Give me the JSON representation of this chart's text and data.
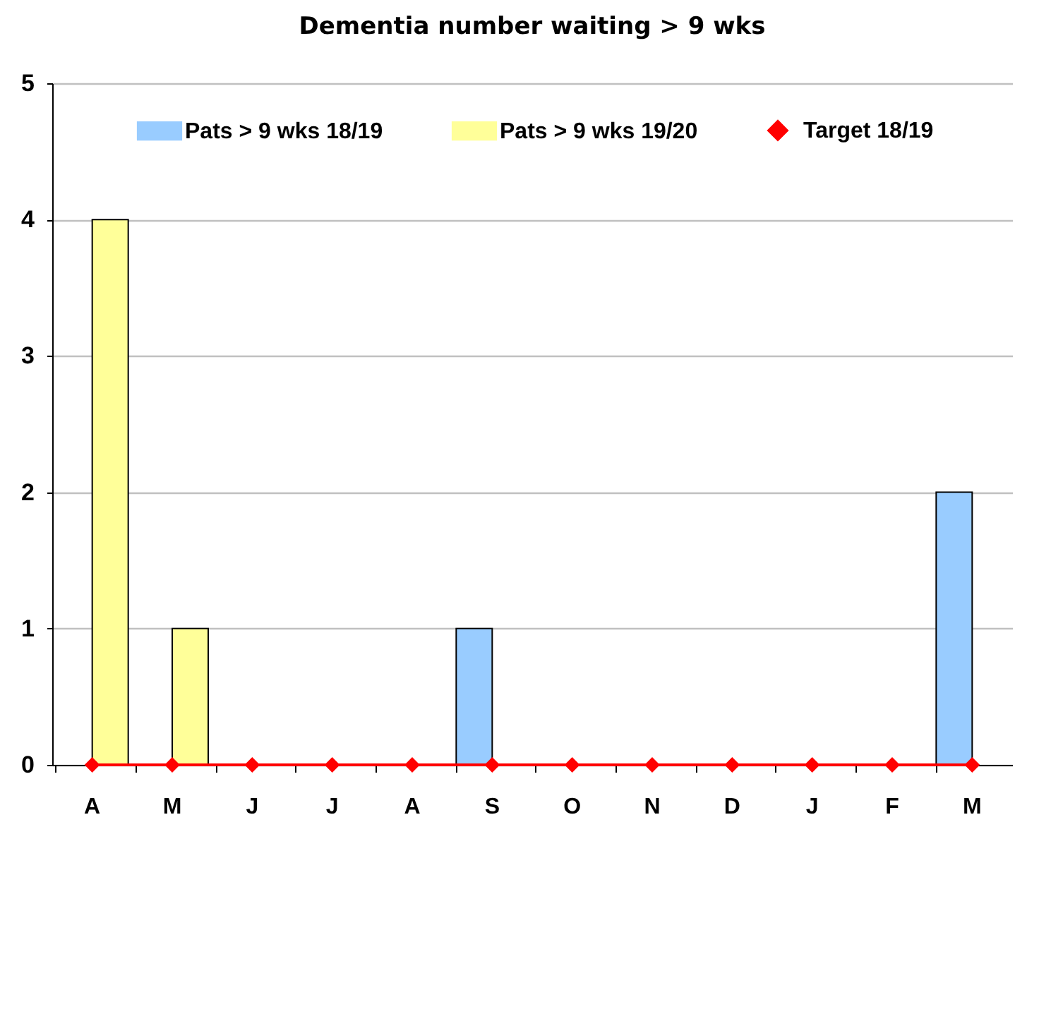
{
  "chart_data": {
    "type": "bar",
    "title": "Dementia  number waiting > 9 wks",
    "categories": [
      "A",
      "M",
      "J",
      "J",
      "A",
      "S",
      "O",
      "N",
      "D",
      "J",
      "F",
      "M"
    ],
    "series": [
      {
        "name": "Pats > 9 wks 18/19",
        "type": "bar",
        "color": "#99ccff",
        "values": [
          0,
          0,
          0,
          0,
          0,
          1,
          0,
          0,
          0,
          0,
          0,
          2
        ]
      },
      {
        "name": "Pats > 9 wks 19/20",
        "type": "bar",
        "color": "#ffff99",
        "values": [
          4,
          1,
          null,
          null,
          null,
          null,
          null,
          null,
          null,
          null,
          null,
          null
        ]
      },
      {
        "name": "Target 18/19",
        "type": "line",
        "color": "#ff0000",
        "values": [
          0,
          0,
          0,
          0,
          0,
          0,
          0,
          0,
          0,
          0,
          0,
          0
        ]
      }
    ],
    "ylim": [
      0,
      5
    ],
    "yticks": [
      0,
      1,
      2,
      3,
      4,
      5
    ],
    "grid": "y",
    "legend": "top",
    "marker": "diamond",
    "line_style": "solid"
  }
}
